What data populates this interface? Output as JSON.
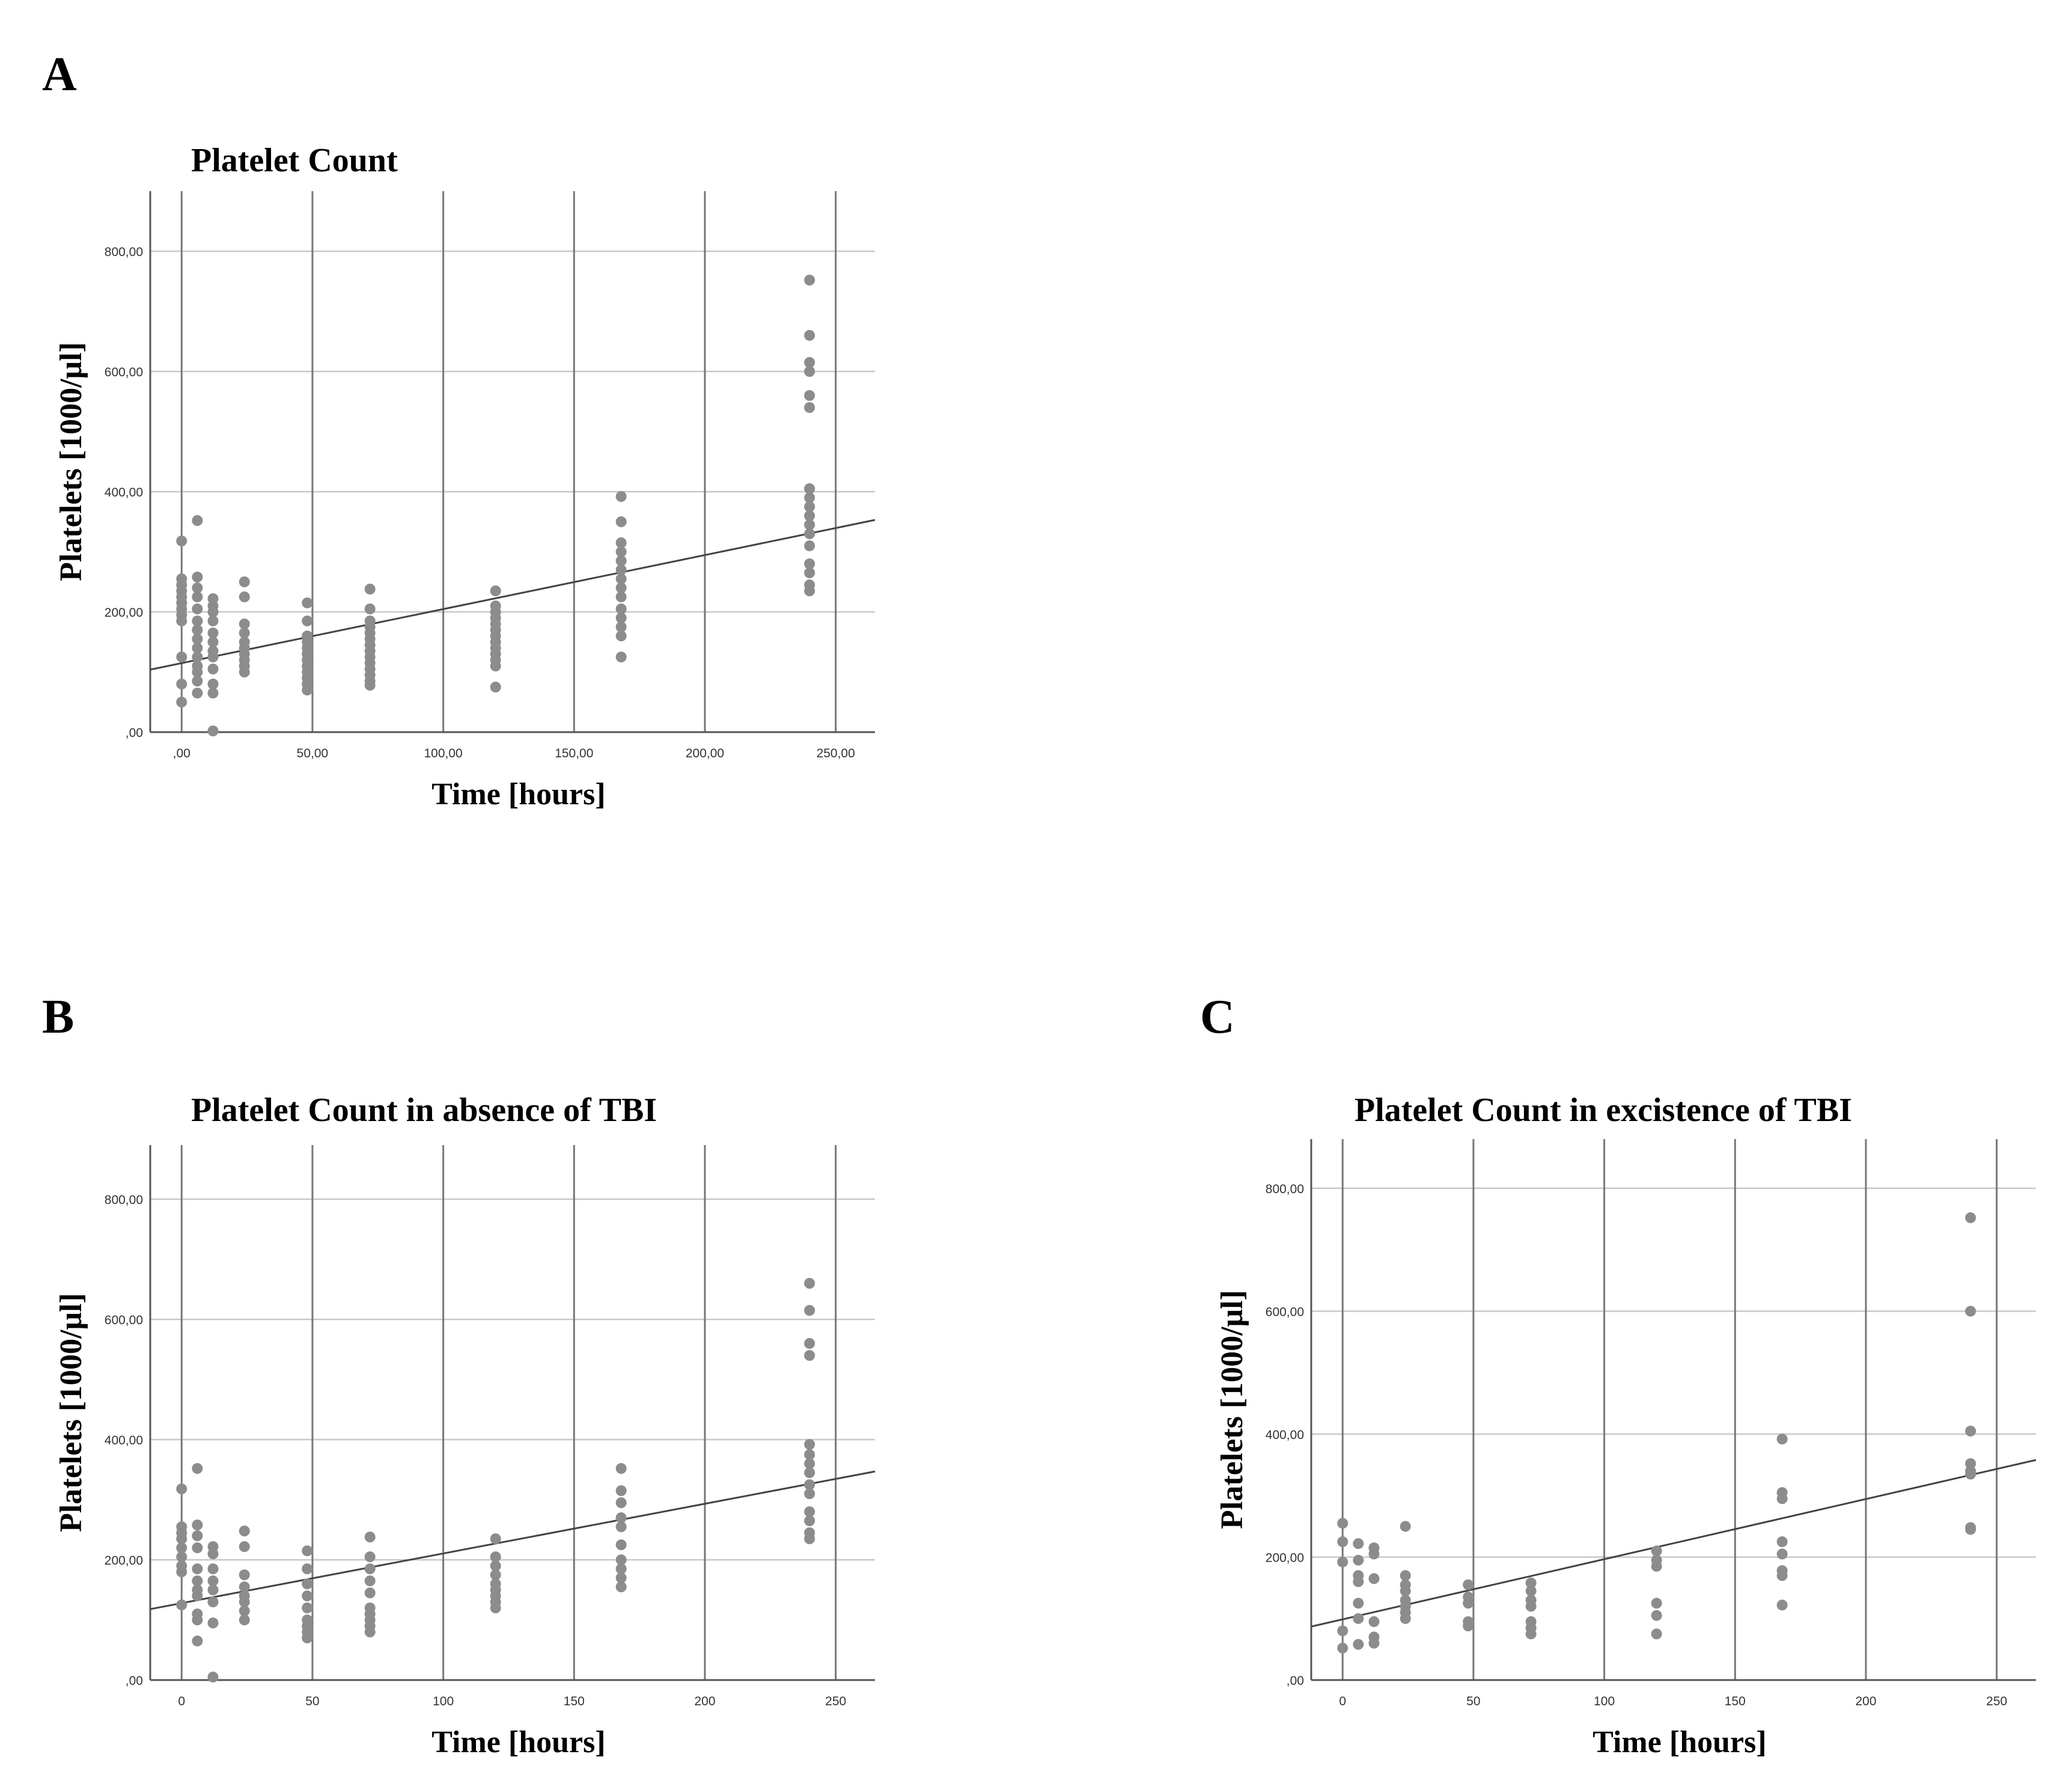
{
  "panels": [
    {
      "letter": "A"
    },
    {
      "letter": "B"
    },
    {
      "letter": "C"
    }
  ],
  "chart_data": [
    {
      "type": "scatter",
      "title": "Platelet Count",
      "xlabel": "Time [hours]",
      "ylabel": "Platelets [1000/μl]",
      "xlim": [
        -12,
        265
      ],
      "ylim": [
        0,
        900
      ],
      "x_ticks": [
        0,
        50,
        100,
        150,
        200,
        250
      ],
      "x_tick_labels": [
        ",00",
        "50,00",
        "100,00",
        "150,00",
        "200,00",
        "250,00"
      ],
      "y_ticks": [
        0,
        200,
        400,
        600,
        800
      ],
      "y_tick_labels": [
        ",00",
        "200,00",
        "400,00",
        "600,00",
        "800,00"
      ],
      "grid": true,
      "fit_line": {
        "x": [
          -12,
          265
        ],
        "y": [
          104,
          353
        ]
      },
      "points": [
        [
          0,
          318
        ],
        [
          0,
          255
        ],
        [
          0,
          245
        ],
        [
          0,
          235
        ],
        [
          0,
          225
        ],
        [
          0,
          215
        ],
        [
          0,
          205
        ],
        [
          0,
          195
        ],
        [
          0,
          185
        ],
        [
          0,
          125
        ],
        [
          0,
          80
        ],
        [
          0,
          50
        ],
        [
          6,
          352
        ],
        [
          6,
          258
        ],
        [
          6,
          240
        ],
        [
          6,
          225
        ],
        [
          6,
          205
        ],
        [
          6,
          185
        ],
        [
          6,
          170
        ],
        [
          6,
          155
        ],
        [
          6,
          140
        ],
        [
          6,
          125
        ],
        [
          6,
          110
        ],
        [
          6,
          100
        ],
        [
          6,
          85
        ],
        [
          6,
          65
        ],
        [
          12,
          222
        ],
        [
          12,
          210
        ],
        [
          12,
          200
        ],
        [
          12,
          185
        ],
        [
          12,
          165
        ],
        [
          12,
          150
        ],
        [
          12,
          135
        ],
        [
          12,
          125
        ],
        [
          12,
          105
        ],
        [
          12,
          80
        ],
        [
          12,
          65
        ],
        [
          12,
          2
        ],
        [
          24,
          250
        ],
        [
          24,
          225
        ],
        [
          24,
          180
        ],
        [
          24,
          165
        ],
        [
          24,
          150
        ],
        [
          24,
          140
        ],
        [
          24,
          130
        ],
        [
          24,
          120
        ],
        [
          24,
          110
        ],
        [
          24,
          100
        ],
        [
          48,
          215
        ],
        [
          48,
          185
        ],
        [
          48,
          160
        ],
        [
          48,
          150
        ],
        [
          48,
          140
        ],
        [
          48,
          130
        ],
        [
          48,
          120
        ],
        [
          48,
          110
        ],
        [
          48,
          100
        ],
        [
          48,
          90
        ],
        [
          48,
          80
        ],
        [
          48,
          70
        ],
        [
          72,
          238
        ],
        [
          72,
          205
        ],
        [
          72,
          185
        ],
        [
          72,
          175
        ],
        [
          72,
          165
        ],
        [
          72,
          155
        ],
        [
          72,
          145
        ],
        [
          72,
          135
        ],
        [
          72,
          125
        ],
        [
          72,
          115
        ],
        [
          72,
          105
        ],
        [
          72,
          95
        ],
        [
          72,
          85
        ],
        [
          72,
          78
        ],
        [
          120,
          235
        ],
        [
          120,
          210
        ],
        [
          120,
          200
        ],
        [
          120,
          190
        ],
        [
          120,
          180
        ],
        [
          120,
          170
        ],
        [
          120,
          160
        ],
        [
          120,
          150
        ],
        [
          120,
          140
        ],
        [
          120,
          130
        ],
        [
          120,
          120
        ],
        [
          120,
          110
        ],
        [
          120,
          75
        ],
        [
          168,
          392
        ],
        [
          168,
          350
        ],
        [
          168,
          315
        ],
        [
          168,
          300
        ],
        [
          168,
          285
        ],
        [
          168,
          270
        ],
        [
          168,
          255
        ],
        [
          168,
          240
        ],
        [
          168,
          225
        ],
        [
          168,
          205
        ],
        [
          168,
          190
        ],
        [
          168,
          175
        ],
        [
          168,
          160
        ],
        [
          168,
          125
        ],
        [
          240,
          752
        ],
        [
          240,
          660
        ],
        [
          240,
          615
        ],
        [
          240,
          600
        ],
        [
          240,
          560
        ],
        [
          240,
          540
        ],
        [
          240,
          405
        ],
        [
          240,
          390
        ],
        [
          240,
          375
        ],
        [
          240,
          360
        ],
        [
          240,
          345
        ],
        [
          240,
          330
        ],
        [
          240,
          310
        ],
        [
          240,
          280
        ],
        [
          240,
          265
        ],
        [
          240,
          245
        ],
        [
          240,
          235
        ]
      ]
    },
    {
      "type": "scatter",
      "title": "Platelet Count in absence of TBI",
      "xlabel": "Time [hours]",
      "ylabel": "Platelets [1000/μl]",
      "xlim": [
        -12,
        265
      ],
      "ylim": [
        0,
        890
      ],
      "x_ticks": [
        0,
        50,
        100,
        150,
        200,
        250
      ],
      "x_tick_labels": [
        "0",
        "50",
        "100",
        "150",
        "200",
        "250"
      ],
      "y_ticks": [
        0,
        200,
        400,
        600,
        800
      ],
      "y_tick_labels": [
        ",00",
        "200,00",
        "400,00",
        "600,00",
        "800,00"
      ],
      "grid": true,
      "fit_line": {
        "x": [
          -12,
          265
        ],
        "y": [
          118,
          347
        ]
      },
      "points": [
        [
          0,
          318
        ],
        [
          0,
          255
        ],
        [
          0,
          245
        ],
        [
          0,
          235
        ],
        [
          0,
          220
        ],
        [
          0,
          205
        ],
        [
          0,
          190
        ],
        [
          0,
          180
        ],
        [
          0,
          125
        ],
        [
          6,
          352
        ],
        [
          6,
          258
        ],
        [
          6,
          240
        ],
        [
          6,
          220
        ],
        [
          6,
          185
        ],
        [
          6,
          165
        ],
        [
          6,
          150
        ],
        [
          6,
          140
        ],
        [
          6,
          110
        ],
        [
          6,
          100
        ],
        [
          6,
          65
        ],
        [
          12,
          222
        ],
        [
          12,
          210
        ],
        [
          12,
          185
        ],
        [
          12,
          165
        ],
        [
          12,
          150
        ],
        [
          12,
          130
        ],
        [
          12,
          95
        ],
        [
          12,
          5
        ],
        [
          24,
          248
        ],
        [
          24,
          222
        ],
        [
          24,
          175
        ],
        [
          24,
          155
        ],
        [
          24,
          140
        ],
        [
          24,
          130
        ],
        [
          24,
          115
        ],
        [
          24,
          100
        ],
        [
          48,
          215
        ],
        [
          48,
          185
        ],
        [
          48,
          160
        ],
        [
          48,
          140
        ],
        [
          48,
          120
        ],
        [
          48,
          100
        ],
        [
          48,
          90
        ],
        [
          48,
          80
        ],
        [
          48,
          70
        ],
        [
          72,
          238
        ],
        [
          72,
          205
        ],
        [
          72,
          185
        ],
        [
          72,
          165
        ],
        [
          72,
          145
        ],
        [
          72,
          120
        ],
        [
          72,
          110
        ],
        [
          72,
          100
        ],
        [
          72,
          90
        ],
        [
          72,
          80
        ],
        [
          120,
          235
        ],
        [
          120,
          205
        ],
        [
          120,
          190
        ],
        [
          120,
          175
        ],
        [
          120,
          160
        ],
        [
          120,
          150
        ],
        [
          120,
          140
        ],
        [
          120,
          130
        ],
        [
          120,
          120
        ],
        [
          168,
          352
        ],
        [
          168,
          315
        ],
        [
          168,
          295
        ],
        [
          168,
          270
        ],
        [
          168,
          255
        ],
        [
          168,
          225
        ],
        [
          168,
          200
        ],
        [
          168,
          185
        ],
        [
          168,
          170
        ],
        [
          168,
          155
        ],
        [
          240,
          660
        ],
        [
          240,
          615
        ],
        [
          240,
          560
        ],
        [
          240,
          540
        ],
        [
          240,
          392
        ],
        [
          240,
          375
        ],
        [
          240,
          360
        ],
        [
          240,
          345
        ],
        [
          240,
          325
        ],
        [
          240,
          310
        ],
        [
          240,
          280
        ],
        [
          240,
          265
        ],
        [
          240,
          245
        ],
        [
          240,
          235
        ]
      ]
    },
    {
      "type": "scatter",
      "title": "Platelet Count in excistence of TBI",
      "xlabel": "Time [hours]",
      "ylabel": "Platelets [1000/μl]",
      "xlim": [
        -12,
        265
      ],
      "ylim": [
        0,
        880
      ],
      "x_ticks": [
        0,
        50,
        100,
        150,
        200,
        250
      ],
      "x_tick_labels": [
        "0",
        "50",
        "100",
        "150",
        "200",
        "250"
      ],
      "y_ticks": [
        0,
        200,
        400,
        600,
        800
      ],
      "y_tick_labels": [
        ",00",
        "200,00",
        "400,00",
        "600,00",
        "800,00"
      ],
      "grid": true,
      "fit_line": {
        "x": [
          -12,
          265
        ],
        "y": [
          87,
          358
        ]
      },
      "points": [
        [
          0,
          255
        ],
        [
          0,
          225
        ],
        [
          0,
          192
        ],
        [
          0,
          80
        ],
        [
          0,
          52
        ],
        [
          6,
          222
        ],
        [
          6,
          195
        ],
        [
          6,
          170
        ],
        [
          6,
          160
        ],
        [
          6,
          125
        ],
        [
          6,
          100
        ],
        [
          6,
          58
        ],
        [
          12,
          215
        ],
        [
          12,
          205
        ],
        [
          12,
          165
        ],
        [
          12,
          95
        ],
        [
          12,
          70
        ],
        [
          12,
          60
        ],
        [
          24,
          250
        ],
        [
          24,
          170
        ],
        [
          24,
          155
        ],
        [
          24,
          145
        ],
        [
          24,
          130
        ],
        [
          24,
          120
        ],
        [
          24,
          110
        ],
        [
          24,
          100
        ],
        [
          48,
          155
        ],
        [
          48,
          135
        ],
        [
          48,
          125
        ],
        [
          48,
          95
        ],
        [
          48,
          88
        ],
        [
          72,
          158
        ],
        [
          72,
          145
        ],
        [
          72,
          130
        ],
        [
          72,
          120
        ],
        [
          72,
          95
        ],
        [
          72,
          85
        ],
        [
          72,
          75
        ],
        [
          120,
          210
        ],
        [
          120,
          195
        ],
        [
          120,
          185
        ],
        [
          120,
          125
        ],
        [
          120,
          105
        ],
        [
          120,
          75
        ],
        [
          168,
          392
        ],
        [
          168,
          305
        ],
        [
          168,
          295
        ],
        [
          168,
          225
        ],
        [
          168,
          205
        ],
        [
          168,
          178
        ],
        [
          168,
          170
        ],
        [
          168,
          122
        ],
        [
          240,
          752
        ],
        [
          240,
          600
        ],
        [
          240,
          405
        ],
        [
          240,
          352
        ],
        [
          240,
          340
        ],
        [
          240,
          335
        ],
        [
          240,
          248
        ],
        [
          240,
          245
        ]
      ]
    }
  ]
}
